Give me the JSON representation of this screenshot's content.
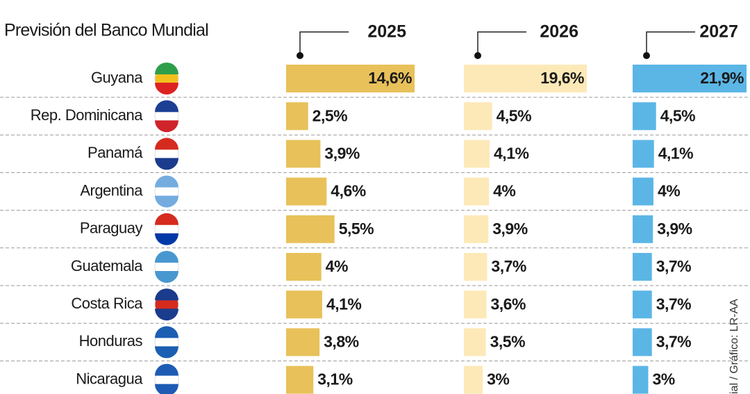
{
  "chart_data": {
    "type": "bar",
    "title": "Previsión del Banco Mundial",
    "categories": [
      "Guyana",
      "Rep. Dominicana",
      "Panamá",
      "Argentina",
      "Paraguay",
      "Guatemala",
      "Costa Rica",
      "Honduras",
      "Nicaragua"
    ],
    "series": [
      {
        "name": "2025",
        "color": "#e8c15a",
        "values": [
          14.6,
          2.5,
          3.9,
          4.6,
          5.5,
          4,
          4.1,
          3.8,
          3.1
        ],
        "value_labels": [
          "14,6%",
          "2,5%",
          "3,9%",
          "4,6%",
          "5,5%",
          "4%",
          "4,1%",
          "3,8%",
          "3,1%"
        ]
      },
      {
        "name": "2026",
        "color": "#fde9b8",
        "values": [
          19.6,
          4.5,
          4.1,
          4,
          3.9,
          3.7,
          3.6,
          3.5,
          3
        ],
        "value_labels": [
          "19,6%",
          "4,5%",
          "4,1%",
          "4%",
          "3,9%",
          "3,7%",
          "3,6%",
          "3,5%",
          "3%"
        ]
      },
      {
        "name": "2027",
        "color": "#5bb6e6",
        "values": [
          21.9,
          4.5,
          4.1,
          4,
          3.9,
          3.7,
          3.7,
          3.7,
          3
        ],
        "value_labels": [
          "21,9%",
          "4,5%",
          "4,1%",
          "4%",
          "3,9%",
          "3,7%",
          "3,7%",
          "3,7%",
          "3%"
        ]
      }
    ],
    "source": "ial / Gráfico: LR-AA"
  }
}
